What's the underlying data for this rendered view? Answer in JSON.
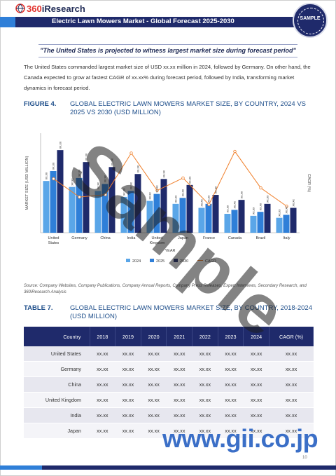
{
  "header": {
    "brand_prefix": "360",
    "brand_suffix": "iResearch",
    "title": "Electric Lawn Mowers Market - Global Forecast 2025-2030",
    "seal_text": "SAMPLE"
  },
  "highlight": {
    "quote": "\"The United States is projected to witness largest market size during forecast period\""
  },
  "body": {
    "paragraph": "The United States commanded largest market size of USD xx.xx million in 2024, followed by Germany. On other hand, the Canada expected to grow at fastest CAGR of xx.xx% during forecast period, followed by India, transforming market dynamics in forecast period."
  },
  "figure": {
    "label": "FIGURE 4.",
    "title": "GLOBAL ELECTRIC LAWN MOWERS MARKET SIZE, BY COUNTRY, 2024 VS 2025 VS 2030 (USD MILLION)",
    "source": "Source: Company Websites, Company Publications, Company Annual Reports, Company Press Releases, Expert Interviews, Secondary Research, and 360iResearch Analysis"
  },
  "chart_data": {
    "type": "bar",
    "categories": [
      "United States",
      "Germany",
      "China",
      "India",
      "United Kingdom",
      "Japan",
      "France",
      "Canada",
      "Brazil",
      "Italy"
    ],
    "series": [
      {
        "name": "2024",
        "values": [
          5.2,
          4.6,
          4.2,
          3.6,
          3.2,
          2.9,
          2.5,
          1.9,
          1.7,
          1.5
        ],
        "color": "#5aa6e8"
      },
      {
        "name": "2025",
        "values": [
          6.2,
          5.5,
          4.9,
          4.2,
          3.9,
          3.5,
          2.9,
          2.3,
          2.1,
          1.8
        ],
        "color": "#2f7fd8"
      },
      {
        "name": "2030",
        "values": [
          8.3,
          7.1,
          6.6,
          5.9,
          5.4,
          4.8,
          3.8,
          3.3,
          2.9,
          2.5
        ],
        "color": "#1f2a6b"
      }
    ],
    "cagr": {
      "name": "CAGR",
      "values": [
        6.5,
        4.3,
        4.6,
        9.6,
        5.1,
        6.6,
        3.4,
        9.8,
        5.4,
        3.2
      ],
      "color": "#f07f2a"
    },
    "bar_label": "xx.xx",
    "xlabel": "YEAR",
    "ylabel": "MARKET SIZE (USD MILLION)",
    "y2label": "CAGR (%)",
    "ylim": [
      0,
      10
    ],
    "y2lim": [
      0,
      12
    ],
    "legend_position": "bottom"
  },
  "table": {
    "label": "TABLE 7.",
    "title": "GLOBAL ELECTRIC LAWN MOWERS MARKET SIZE, BY COUNTRY, 2018-2024 (USD MILLION)",
    "headers": [
      "Country",
      "2018",
      "2019",
      "2020",
      "2021",
      "2022",
      "2023",
      "2024",
      "CAGR (%)"
    ],
    "rows": [
      [
        "United States",
        "xx.xx",
        "xx.xx",
        "xx.xx",
        "xx.xx",
        "xx.xx",
        "xx.xx",
        "xx.xx",
        "xx.xx"
      ],
      [
        "Germany",
        "xx.xx",
        "xx.xx",
        "xx.xx",
        "xx.xx",
        "xx.xx",
        "xx.xx",
        "xx.xx",
        "xx.xx"
      ],
      [
        "China",
        "xx.xx",
        "xx.xx",
        "xx.xx",
        "xx.xx",
        "xx.xx",
        "xx.xx",
        "xx.xx",
        "xx.xx"
      ],
      [
        "United Kingdom",
        "xx.xx",
        "xx.xx",
        "xx.xx",
        "xx.xx",
        "xx.xx",
        "xx.xx",
        "xx.xx",
        "xx.xx"
      ],
      [
        "India",
        "xx.xx",
        "xx.xx",
        "xx.xx",
        "xx.xx",
        "xx.xx",
        "xx.xx",
        "xx.xx",
        "xx.xx"
      ],
      [
        "Japan",
        "xx.xx",
        "xx.xx",
        "xx.xx",
        "xx.xx",
        "xx.xx",
        "xx.xx",
        "xx.xx",
        "xx.xx"
      ]
    ]
  },
  "watermarks": {
    "sample": "Sample",
    "site": "www.gii.co.jp"
  },
  "footer": {
    "page_number": "10"
  }
}
